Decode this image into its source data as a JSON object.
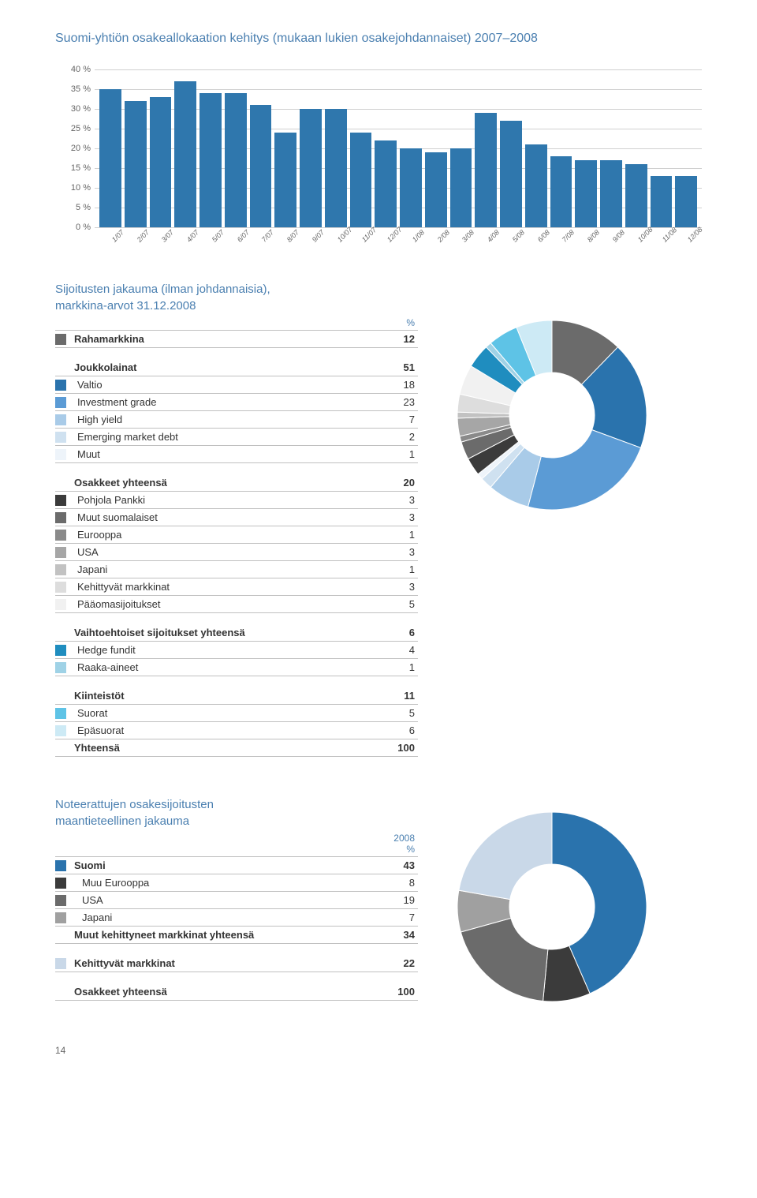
{
  "bar_chart": {
    "title": "Suomi-yhtiön osakeallokaation kehitys (mukaan lukien osakejohdannaiset) 2007–2008",
    "type": "bar",
    "ylim": [
      0,
      40
    ],
    "ytick_step": 5,
    "y_ticks": [
      "0 %",
      "5 %",
      "10 %",
      "15 %",
      "20 %",
      "25 %",
      "30 %",
      "35 %",
      "40 %"
    ],
    "categories": [
      "1/07",
      "2/07",
      "3/07",
      "4/07",
      "5/07",
      "6/07",
      "7/07",
      "8/07",
      "9/07",
      "10/07",
      "11/07",
      "12/07",
      "1/08",
      "2/08",
      "3/08",
      "4/08",
      "5/08",
      "6/08",
      "7/08",
      "8/08",
      "9/08",
      "10/08",
      "11/08",
      "12/08"
    ],
    "values": [
      35,
      32,
      33,
      37,
      34,
      34,
      31,
      24,
      30,
      30,
      24,
      22,
      20,
      19,
      20,
      29,
      27,
      21,
      18,
      17,
      17,
      16,
      13,
      13
    ],
    "bar_color": "#2f77ad",
    "grid_color": "#d0d0d0",
    "background_color": "#ffffff"
  },
  "allocation": {
    "title1": "Sijoitusten jakauma (ilman johdannaisia),",
    "title2": "markkina-arvot 31.12.2008",
    "pct_label": "%",
    "groups": [
      {
        "header": {
          "label": "Rahamarkkina",
          "value": "12",
          "color": "#6b6b6b"
        }
      },
      {
        "header": {
          "label": "Joukkolainat",
          "value": "51"
        },
        "rows": [
          {
            "label": "Valtio",
            "value": "18",
            "color": "#2a73ad"
          },
          {
            "label": "Investment grade",
            "value": "23",
            "color": "#5b9bd5"
          },
          {
            "label": "High yield",
            "value": "7",
            "color": "#a9cbe8"
          },
          {
            "label": "Emerging market debt",
            "value": "2",
            "color": "#cfe1f0"
          },
          {
            "label": "Muut",
            "value": "1",
            "color": "#eef4fa"
          }
        ]
      },
      {
        "header": {
          "label": "Osakkeet yhteensä",
          "value": "20"
        },
        "rows": [
          {
            "label": "Pohjola Pankki",
            "value": "3",
            "color": "#3b3b3b"
          },
          {
            "label": "Muut suomalaiset",
            "value": "3",
            "color": "#6b6b6b"
          },
          {
            "label": "Eurooppa",
            "value": "1",
            "color": "#8a8a8a"
          },
          {
            "label": "USA",
            "value": "3",
            "color": "#a6a6a6"
          },
          {
            "label": "Japani",
            "value": "1",
            "color": "#c2c2c2"
          },
          {
            "label": "Kehittyvät markkinat",
            "value": "3",
            "color": "#dddddd"
          },
          {
            "label": "Pääomasijoitukset",
            "value": "5",
            "color": "#f1f1f1"
          }
        ]
      },
      {
        "header": {
          "label": "Vaihtoehtoiset sijoitukset yhteensä",
          "value": "6"
        },
        "rows": [
          {
            "label": "Hedge fundit",
            "value": "4",
            "color": "#1f8dbf"
          },
          {
            "label": "Raaka-aineet",
            "value": "1",
            "color": "#9fd2e6"
          }
        ]
      },
      {
        "header": {
          "label": "Kiinteistöt",
          "value": "11"
        },
        "rows": [
          {
            "label": "Suorat",
            "value": "5",
            "color": "#5ec3e6"
          },
          {
            "label": "Epäsuorat",
            "value": "6",
            "color": "#cdeaf5"
          }
        ],
        "footer": {
          "label": "Yhteensä",
          "value": "100"
        }
      }
    ]
  },
  "donut1": {
    "type": "donut",
    "inner_radius_ratio": 0.45,
    "background_color": "#ffffff",
    "slices": [
      {
        "value": 12,
        "color": "#6b6b6b"
      },
      {
        "value": 18,
        "color": "#2a73ad"
      },
      {
        "value": 23,
        "color": "#5b9bd5"
      },
      {
        "value": 7,
        "color": "#a9cbe8"
      },
      {
        "value": 2,
        "color": "#cfe1f0"
      },
      {
        "value": 1,
        "color": "#eef4fa"
      },
      {
        "value": 3,
        "color": "#3b3b3b"
      },
      {
        "value": 3,
        "color": "#6b6b6b"
      },
      {
        "value": 1,
        "color": "#8a8a8a"
      },
      {
        "value": 3,
        "color": "#a6a6a6"
      },
      {
        "value": 1,
        "color": "#c2c2c2"
      },
      {
        "value": 3,
        "color": "#dddddd"
      },
      {
        "value": 5,
        "color": "#f1f1f1"
      },
      {
        "value": 4,
        "color": "#1f8dbf"
      },
      {
        "value": 1,
        "color": "#9fd2e6"
      },
      {
        "value": 5,
        "color": "#5ec3e6"
      },
      {
        "value": 6,
        "color": "#cdeaf5"
      }
    ]
  },
  "geo": {
    "title1": "Noteerattujen osakesijoitusten",
    "title2": "maantieteellinen jakauma",
    "year_label": "2008",
    "pct_label": "%",
    "rows": [
      {
        "label": "Suomi",
        "value": "43",
        "color": "#2a73ad",
        "bold": true
      },
      {
        "label": "Muu Eurooppa",
        "value": "8",
        "color": "#3b3b3b",
        "indent": true
      },
      {
        "label": "USA",
        "value": "19",
        "color": "#6b6b6b",
        "indent": true
      },
      {
        "label": "Japani",
        "value": "7",
        "color": "#a0a0a0",
        "indent": true
      },
      {
        "label": "Muut kehittyneet markkinat yhteensä",
        "value": "34",
        "bold": true,
        "no_swatch": true
      },
      {
        "label": "Kehittyvät markkinat",
        "value": "22",
        "color": "#c9d8e8",
        "bold": true,
        "gap_before": true
      },
      {
        "label": "Osakkeet yhteensä",
        "value": "100",
        "bold": true,
        "no_swatch": true,
        "gap_before": true
      }
    ]
  },
  "donut2": {
    "type": "donut",
    "inner_radius_ratio": 0.45,
    "background_color": "#ffffff",
    "slices": [
      {
        "value": 43,
        "color": "#2a73ad"
      },
      {
        "value": 8,
        "color": "#3b3b3b"
      },
      {
        "value": 19,
        "color": "#6b6b6b"
      },
      {
        "value": 7,
        "color": "#a0a0a0"
      },
      {
        "value": 22,
        "color": "#c9d8e8"
      }
    ]
  },
  "page_number": "14"
}
